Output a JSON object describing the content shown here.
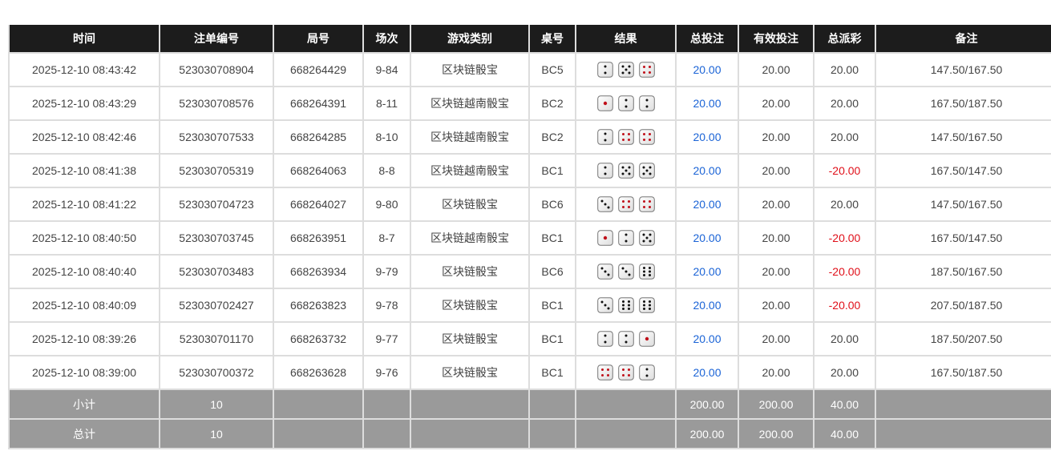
{
  "headers": [
    "时间",
    "注单编号",
    "局号",
    "场次",
    "游戏类别",
    "桌号",
    "结果",
    "总投注",
    "有效投注",
    "总派彩",
    "备注"
  ],
  "rows": [
    {
      "time": "2025-12-10 08:43:42",
      "bet_id": "523030708904",
      "round": "668264429",
      "session": "9-84",
      "game": "区块链骰宝",
      "table": "BC5",
      "dice": [
        2,
        5,
        4
      ],
      "total_bet": "20.00",
      "valid_bet": "20.00",
      "payout": "20.00",
      "note": "147.50/167.50"
    },
    {
      "time": "2025-12-10 08:43:29",
      "bet_id": "523030708576",
      "round": "668264391",
      "session": "8-11",
      "game": "区块链越南骰宝",
      "table": "BC2",
      "dice": [
        1,
        2,
        2
      ],
      "total_bet": "20.00",
      "valid_bet": "20.00",
      "payout": "20.00",
      "note": "167.50/187.50"
    },
    {
      "time": "2025-12-10 08:42:46",
      "bet_id": "523030707533",
      "round": "668264285",
      "session": "8-10",
      "game": "区块链越南骰宝",
      "table": "BC2",
      "dice": [
        2,
        4,
        4
      ],
      "total_bet": "20.00",
      "valid_bet": "20.00",
      "payout": "20.00",
      "note": "147.50/167.50"
    },
    {
      "time": "2025-12-10 08:41:38",
      "bet_id": "523030705319",
      "round": "668264063",
      "session": "8-8",
      "game": "区块链越南骰宝",
      "table": "BC1",
      "dice": [
        2,
        5,
        5
      ],
      "total_bet": "20.00",
      "valid_bet": "20.00",
      "payout": "-20.00",
      "note": "167.50/147.50"
    },
    {
      "time": "2025-12-10 08:41:22",
      "bet_id": "523030704723",
      "round": "668264027",
      "session": "9-80",
      "game": "区块链骰宝",
      "table": "BC6",
      "dice": [
        3,
        4,
        4
      ],
      "total_bet": "20.00",
      "valid_bet": "20.00",
      "payout": "20.00",
      "note": "147.50/167.50"
    },
    {
      "time": "2025-12-10 08:40:50",
      "bet_id": "523030703745",
      "round": "668263951",
      "session": "8-7",
      "game": "区块链越南骰宝",
      "table": "BC1",
      "dice": [
        1,
        2,
        5
      ],
      "total_bet": "20.00",
      "valid_bet": "20.00",
      "payout": "-20.00",
      "note": "167.50/147.50"
    },
    {
      "time": "2025-12-10 08:40:40",
      "bet_id": "523030703483",
      "round": "668263934",
      "session": "9-79",
      "game": "区块链骰宝",
      "table": "BC6",
      "dice": [
        3,
        3,
        6
      ],
      "total_bet": "20.00",
      "valid_bet": "20.00",
      "payout": "-20.00",
      "note": "187.50/167.50"
    },
    {
      "time": "2025-12-10 08:40:09",
      "bet_id": "523030702427",
      "round": "668263823",
      "session": "9-78",
      "game": "区块链骰宝",
      "table": "BC1",
      "dice": [
        3,
        6,
        6
      ],
      "total_bet": "20.00",
      "valid_bet": "20.00",
      "payout": "-20.00",
      "note": "207.50/187.50"
    },
    {
      "time": "2025-12-10 08:39:26",
      "bet_id": "523030701170",
      "round": "668263732",
      "session": "9-77",
      "game": "区块链骰宝",
      "table": "BC1",
      "dice": [
        2,
        2,
        1
      ],
      "total_bet": "20.00",
      "valid_bet": "20.00",
      "payout": "20.00",
      "note": "187.50/207.50"
    },
    {
      "time": "2025-12-10 08:39:00",
      "bet_id": "523030700372",
      "round": "668263628",
      "session": "9-76",
      "game": "区块链骰宝",
      "table": "BC1",
      "dice": [
        4,
        4,
        2
      ],
      "total_bet": "20.00",
      "valid_bet": "20.00",
      "payout": "20.00",
      "note": "167.50/187.50"
    }
  ],
  "subtotal": {
    "label": "小计",
    "count": "10",
    "total_bet": "200.00",
    "valid_bet": "200.00",
    "payout": "40.00"
  },
  "total": {
    "label": "总计",
    "count": "10",
    "total_bet": "200.00",
    "valid_bet": "200.00",
    "payout": "40.00"
  },
  "colors": {
    "header_bg": "#1c1c1c",
    "bet_link": "#1a63d6",
    "negative": "#e0101a",
    "summary_bg": "#9a9a9a",
    "red_pip": "#c0101a"
  }
}
